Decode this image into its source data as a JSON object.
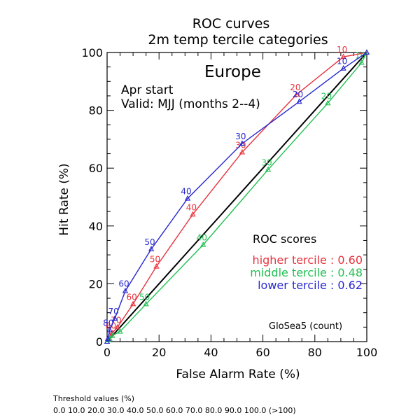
{
  "chart_data": {
    "type": "line",
    "title": "ROC curves",
    "subtitle": "2m temp tercile categories",
    "region": "Europe",
    "start_text": "Apr start",
    "valid_text": "Valid: MJJ (months 2--4)",
    "xlabel": "False Alarm Rate (%)",
    "ylabel": "Hit Rate (%)",
    "xlim": [
      0,
      100
    ],
    "ylim": [
      0,
      100
    ],
    "x_ticks": [
      0,
      20,
      40,
      60,
      80,
      100
    ],
    "y_ticks": [
      0,
      20,
      40,
      60,
      80,
      100
    ],
    "x_tick_labels": [
      "0",
      "20",
      "40",
      "60",
      "80",
      "100"
    ],
    "y_tick_labels": [
      "0",
      "20",
      "40",
      "60",
      "80",
      "100"
    ],
    "grid": false,
    "legend": {
      "title": "ROC scores",
      "placement": "lower-right",
      "entries": [
        {
          "label": "higher tercile : 0.60",
          "color": "#e8333d"
        },
        {
          "label": "middle tercile : 0.48",
          "color": "#20c050"
        },
        {
          "label": "lower tercile : 0.62",
          "color": "#2727d0"
        }
      ]
    },
    "diagonal": {
      "x": [
        0,
        100
      ],
      "y": [
        0,
        100
      ],
      "color": "#000000"
    },
    "series": [
      {
        "color": "#e8333d",
        "x": [
          0,
          0.5,
          1,
          2,
          4,
          10,
          19,
          33,
          52,
          73,
          91,
          100
        ],
        "y": [
          0,
          1,
          2,
          3,
          5,
          13,
          26,
          44,
          65.5,
          85.5,
          98.5,
          100
        ],
        "labels": [
          "",
          "",
          "",
          "80",
          "70",
          "60",
          "50",
          "40",
          "30",
          "20",
          "10",
          ""
        ]
      },
      {
        "color": "#20c050",
        "x": [
          0,
          0.5,
          1,
          2,
          5,
          15,
          37,
          62,
          85,
          98,
          100
        ],
        "y": [
          0,
          0.5,
          1,
          2,
          3.5,
          13,
          33.5,
          59.5,
          82.5,
          96.5,
          100
        ],
        "labels": [
          "",
          "",
          "",
          "",
          "",
          "50",
          "40",
          "30",
          "20",
          "10",
          ""
        ]
      },
      {
        "color": "#2727d0",
        "x": [
          0,
          0.3,
          1,
          3,
          7,
          17,
          31,
          52,
          74,
          91,
          100
        ],
        "y": [
          0,
          1,
          4,
          8,
          17.5,
          32,
          49.5,
          68.5,
          83,
          94.5,
          100
        ],
        "labels": [
          "",
          "",
          "80",
          "70",
          "60",
          "50",
          "40",
          "30",
          "20",
          "10",
          ""
        ]
      }
    ],
    "model_text": "GloSea5 (count)",
    "threshold_title": "Threshold values (%)",
    "threshold_values": "0.0 10.0 20.0 30.0 40.0 50.0 60.0 70.0 80.0 90.0 100.0 (>100)"
  }
}
